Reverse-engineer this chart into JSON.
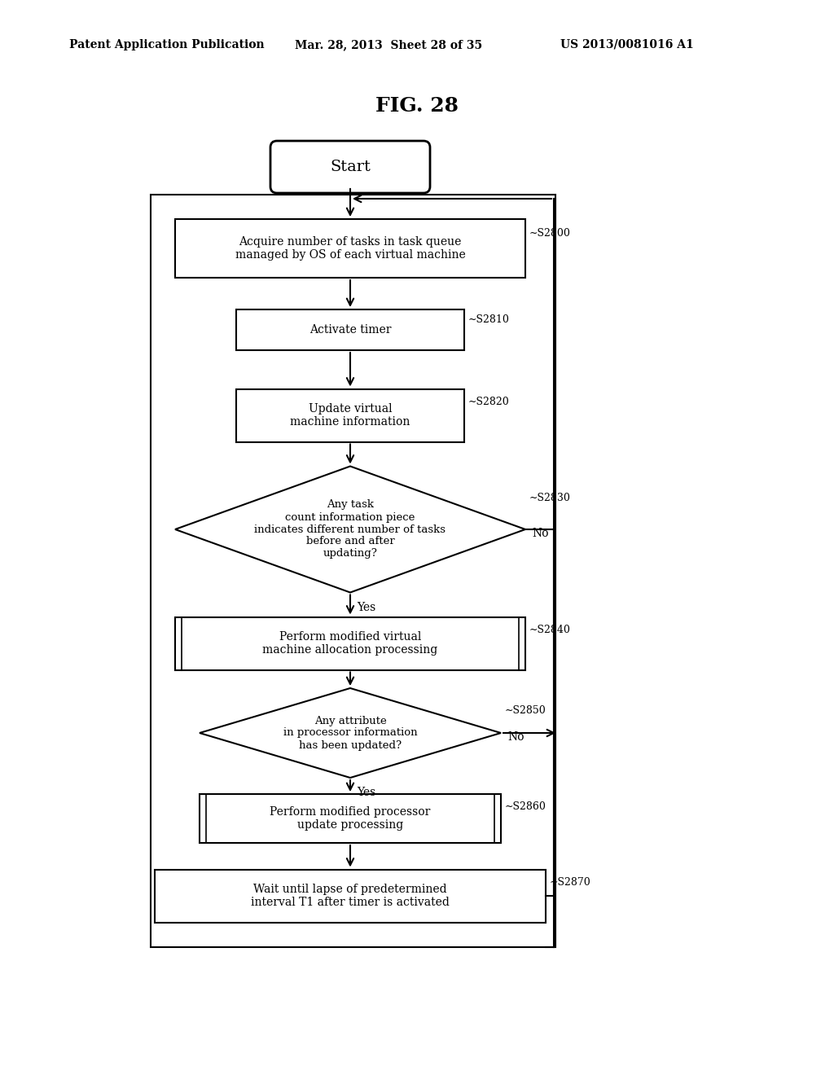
{
  "bg_color": "#ffffff",
  "header_left": "Patent Application Publication",
  "header_center": "Mar. 28, 2013  Sheet 28 of 35",
  "header_right": "US 2013/0081016 A1",
  "fig_title": "FIG. 28",
  "start_text": "Start",
  "s2800_text": "Acquire number of tasks in task queue\nmanaged by OS of each virtual machine",
  "s2810_text": "Activate timer",
  "s2820_text": "Update virtual\nmachine information",
  "s2830_text": "Any task\ncount information piece\nindicates different number of tasks\nbefore and after\nupdating?",
  "s2840_text": "Perform modified virtual\nmachine allocation processing",
  "s2850_text": "Any attribute\nin processor information\nhas been updated?",
  "s2860_text": "Perform modified processor\nupdate processing",
  "s2870_text": "Wait until lapse of predetermined\ninterval T1 after timer is activated"
}
